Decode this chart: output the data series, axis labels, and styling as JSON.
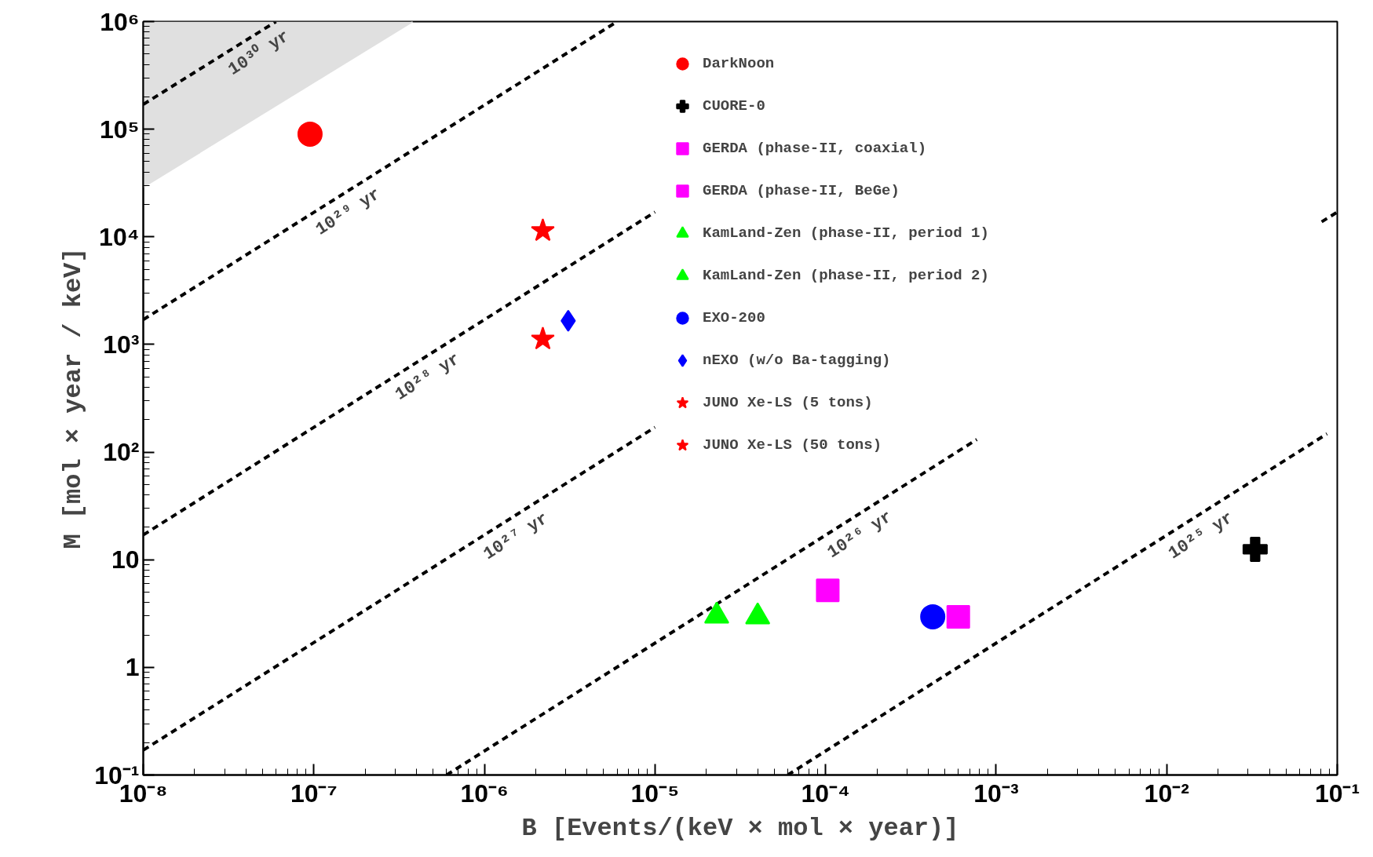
{
  "chart_data": {
    "type": "scatter",
    "xlabel": "B [Events/(keV × mol × year)]",
    "ylabel": "M [mol × year / keV]",
    "log": "xy",
    "grid": false,
    "legend": "top",
    "xlim": [
      1e-08,
      0.1
    ],
    "ylim": [
      0.1,
      1000000
    ],
    "xticks": [
      {
        "value": 1e-08,
        "label": "10⁻⁸"
      },
      {
        "value": 1e-07,
        "label": "10⁻⁷"
      },
      {
        "value": 1e-06,
        "label": "10⁻⁶"
      },
      {
        "value": 1e-05,
        "label": "10⁻⁵"
      },
      {
        "value": 0.0001,
        "label": "10⁻⁴"
      },
      {
        "value": 0.001,
        "label": "10⁻³"
      },
      {
        "value": 0.01,
        "label": "10⁻²"
      },
      {
        "value": 0.1,
        "label": "10⁻¹"
      }
    ],
    "yticks": [
      {
        "value": 0.1,
        "label": "10⁻¹"
      },
      1,
      10,
      {
        "value": 100,
        "label": "10²"
      },
      {
        "value": 1000,
        "label": "10³"
      },
      {
        "value": 10000,
        "label": "10⁴"
      },
      {
        "value": 100000,
        "label": "10⁵"
      },
      {
        "value": 1000000,
        "label": "10⁶"
      }
    ],
    "series": [
      {
        "type": "area",
        "color": "#e0e0e0",
        "x": [
          1e-08,
          3.8e-07
        ],
        "values": [
          29000,
          1000000
        ]
      },
      {
        "type": "line",
        "line_style": "dashed",
        "color": "#000000",
        "x": [
          1e-08,
          6e-08
        ],
        "values": [
          170000,
          1000000
        ]
      },
      {
        "type": "line",
        "line_style": "dashed",
        "color": "#000000",
        "x": [
          1e-08,
          6e-06
        ],
        "values": [
          1700,
          1000000
        ]
      },
      {
        "type": "line",
        "line_style": "dashed",
        "color": "#000000",
        "x": [
          1e-08,
          1e-05
        ],
        "values": [
          17,
          17000
        ]
      },
      {
        "type": "line",
        "line_style": "dashed",
        "color": "#000000",
        "x": [
          1e-08,
          1e-05
        ],
        "values": [
          0.17,
          170
        ]
      },
      {
        "type": "line",
        "line_style": "dashed",
        "color": "#000000",
        "x": [
          6e-07,
          0.00077
        ],
        "values": [
          0.1,
          131
        ]
      },
      {
        "type": "line",
        "line_style": "dashed",
        "color": "#000000",
        "x": [
          0.081,
          0.1
        ],
        "values": [
          13800,
          17000
        ]
      },
      {
        "type": "line",
        "line_style": "dashed",
        "color": "#000000",
        "x": [
          6e-05,
          0.087
        ],
        "values": [
          0.1,
          148
        ]
      },
      {
        "name": "DarkNoon",
        "color": "#ff0000",
        "marker": "circle",
        "x": [
          9.5e-08
        ],
        "values": [
          90000
        ]
      },
      {
        "name": "CUORE-0",
        "color": "#000000",
        "marker": "cross",
        "x": [
          0.033
        ],
        "values": [
          12.5
        ]
      },
      {
        "name": "GERDA (phase-II, coaxial)",
        "color": "#ff00ff",
        "marker": "square",
        "x": [
          0.0006
        ],
        "values": [
          2.95
        ]
      },
      {
        "name": "GERDA (phase-II, BeGe)",
        "color": "#ff00ff",
        "marker": "square",
        "x": [
          0.000103
        ],
        "values": [
          5.2
        ]
      },
      {
        "name": "KamLand-Zen (phase-II, period 1)",
        "color": "#00ff00",
        "marker": "triangle",
        "x": [
          4e-05
        ],
        "values": [
          2.95
        ]
      },
      {
        "name": "KamLand-Zen (phase-II, period 2)",
        "color": "#00ff00",
        "marker": "triangle",
        "x": [
          2.3e-05
        ],
        "values": [
          3.0
        ]
      },
      {
        "name": "EXO-200",
        "color": "#0000ff",
        "marker": "circle",
        "x": [
          0.000425
        ],
        "values": [
          2.95
        ]
      },
      {
        "name": "nEXO (w/o Ba-tagging)",
        "color": "#0000ff",
        "marker": "diamond",
        "x": [
          3.1e-06
        ],
        "values": [
          1660
        ]
      },
      {
        "name": "JUNO Xe-LS (5 tons)",
        "color": "#ff0000",
        "marker": "star",
        "x": [
          2.2e-06
        ],
        "values": [
          1120
        ]
      },
      {
        "name": "JUNO Xe-LS (50 tons)",
        "color": "#ff0000",
        "marker": "star",
        "x": [
          2.2e-06
        ],
        "values": [
          11400
        ]
      }
    ],
    "annotations": [
      {
        "text": "10³⁰ yr",
        "x": 4.2e-08,
        "y": 710000
      },
      {
        "text": "10²⁹ yr",
        "x": 1.4e-07,
        "y": 23800
      },
      {
        "text": "10²⁸ yr",
        "x": 4.1e-07,
        "y": 697
      },
      {
        "text": "10²⁷ yr",
        "x": 1.35e-06,
        "y": 23
      },
      {
        "text": "10²⁶ yr",
        "x": 0.00014,
        "y": 23.8
      },
      {
        "text": "10²⁵ yr",
        "x": 0.014,
        "y": 23.3
      }
    ]
  }
}
